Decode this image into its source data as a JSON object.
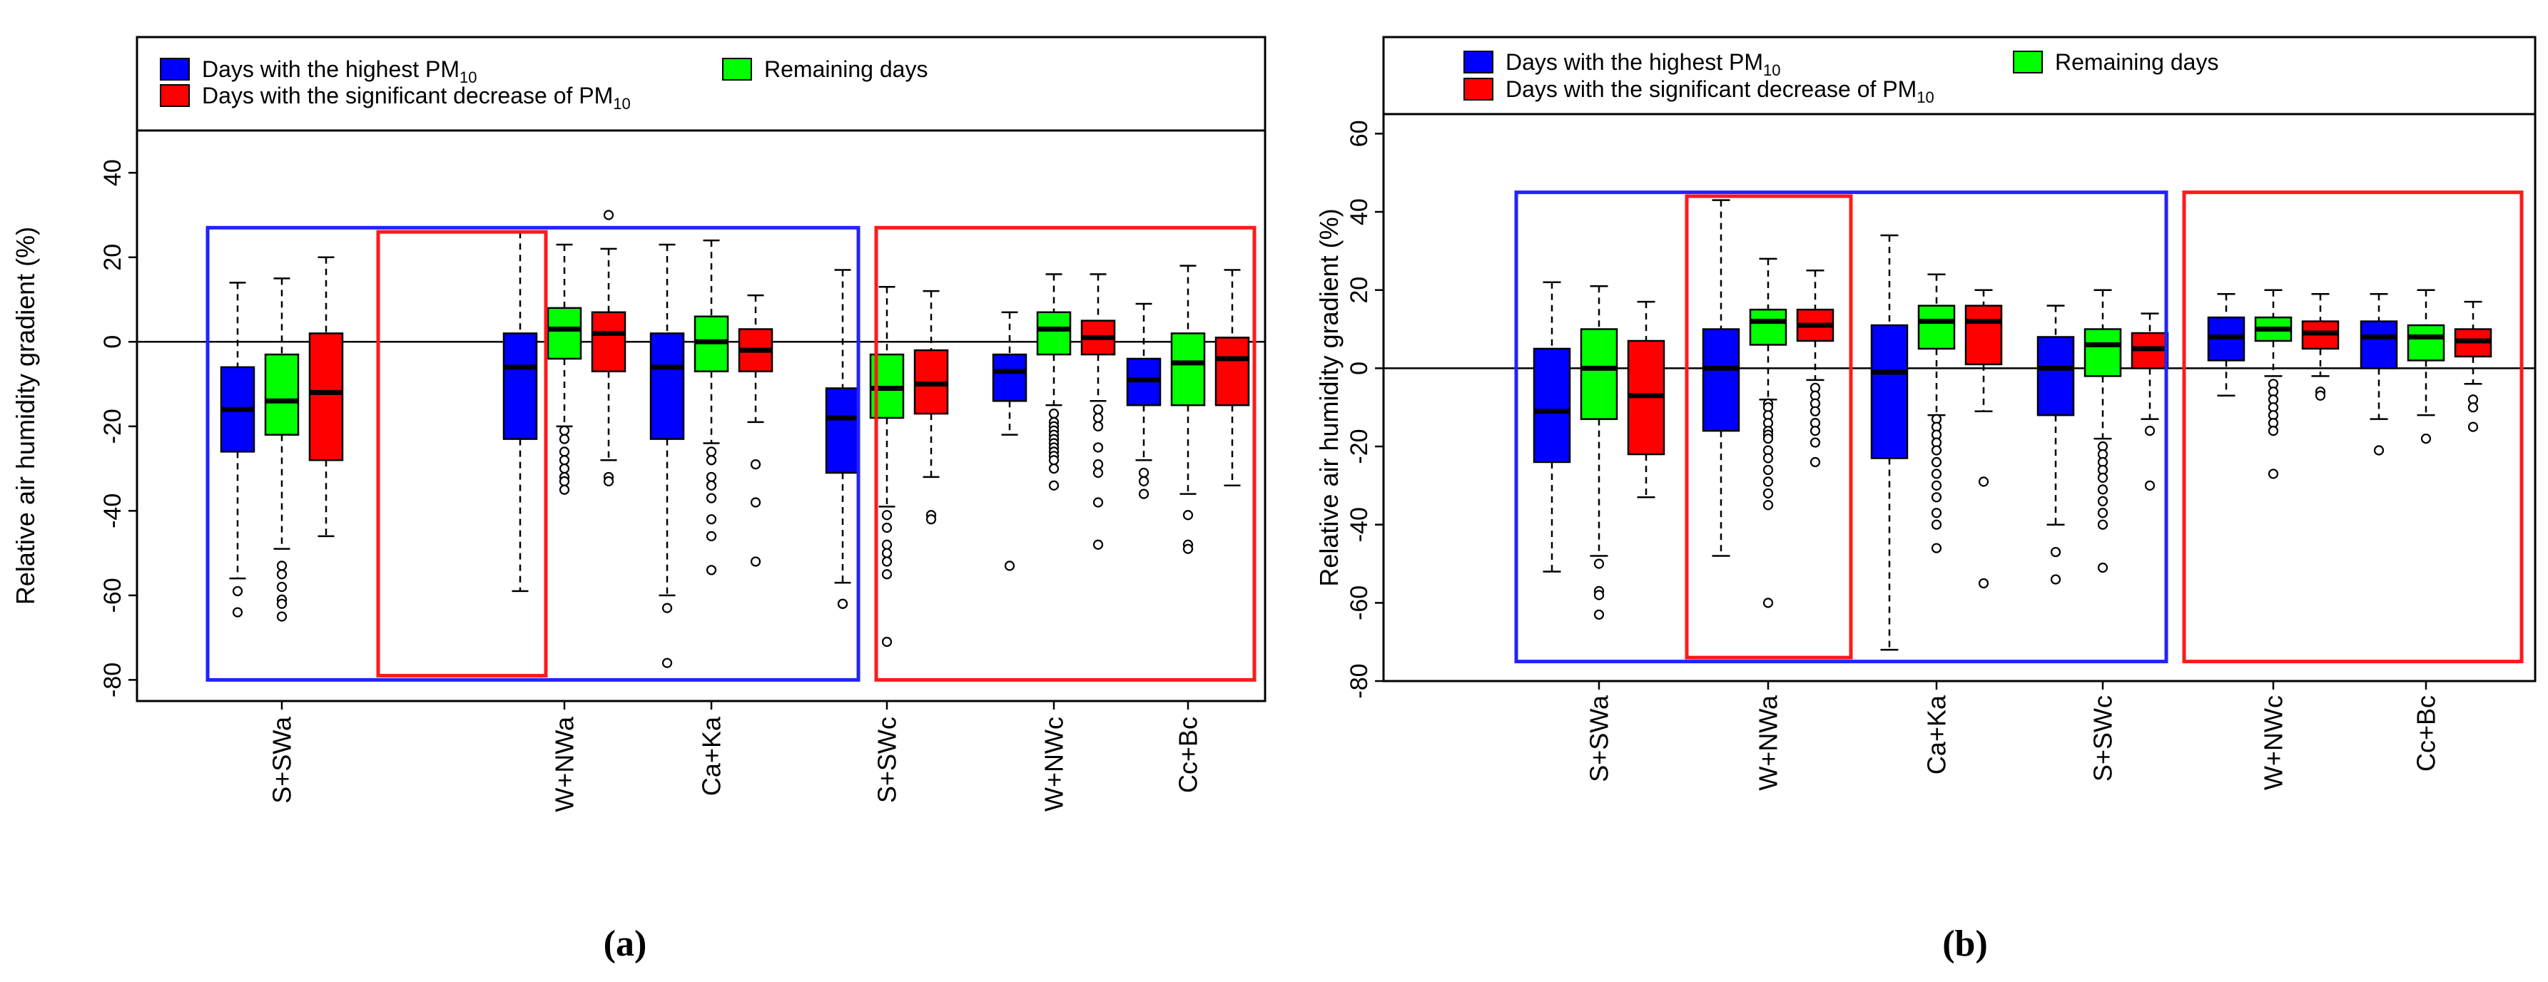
{
  "colors": {
    "blue": "#0000ff",
    "green": "#00ff00",
    "red": "#ff0000",
    "frame": "#000000",
    "outline_blue": "#2222ff",
    "outline_red": "#ff1a1a"
  },
  "chart_data": [
    {
      "type": "box",
      "panel_label": "(a)",
      "ylabel": "Relative air humidity gradient (%)",
      "ylim": [
        -85,
        50
      ],
      "yticks": [
        -80,
        -60,
        -40,
        -20,
        0,
        20,
        40
      ],
      "categories": [
        "S+SWa",
        "W+NWa",
        "Ca+Ka",
        "S+SWc",
        "W+NWc",
        "Cc+Bc"
      ],
      "legend": [
        {
          "color": "blue",
          "label": "Days with the highest PM",
          "sub": "10"
        },
        {
          "color": "red",
          "label": "Days with the significant decrease of PM",
          "sub": "10"
        },
        {
          "color": "green",
          "label": "Remaining days",
          "sub": ""
        }
      ],
      "highlights": [
        {
          "color": "outline_blue",
          "from_group": 0,
          "to_group": 3,
          "y_top": 27,
          "y_bottom": -80
        },
        {
          "color": "outline_red",
          "from_group": 1,
          "to_group": 1,
          "y_top": 26,
          "y_bottom": -79
        },
        {
          "color": "outline_red",
          "from_group": 4,
          "to_group": 5,
          "y_top": 27,
          "y_bottom": -80
        }
      ],
      "boxes": [
        {
          "group": 0,
          "color": "blue",
          "whisker_low": -56,
          "q1": -26,
          "median": -16,
          "q3": -6,
          "whisker_high": 14,
          "outliers": [
            -59,
            -64
          ]
        },
        {
          "group": 0,
          "color": "green",
          "whisker_low": -49,
          "q1": -22,
          "median": -14,
          "q3": -3,
          "whisker_high": 15,
          "outliers": [
            -53,
            -55,
            -58,
            -61,
            -62,
            -65
          ]
        },
        {
          "group": 0,
          "color": "red",
          "whisker_low": -46,
          "q1": -28,
          "median": -12,
          "q3": 2,
          "whisker_high": 20,
          "outliers": []
        },
        {
          "group": 1,
          "color": "blue",
          "whisker_low": -59,
          "q1": -23,
          "median": -6,
          "q3": 2,
          "whisker_high": 26,
          "outliers": []
        },
        {
          "group": 1,
          "color": "green",
          "whisker_low": -20,
          "q1": -4,
          "median": 3,
          "q3": 8,
          "whisker_high": 23,
          "outliers": [
            -21,
            -23,
            -26,
            -28,
            -30,
            -32,
            -33,
            -35
          ]
        },
        {
          "group": 1,
          "color": "red",
          "whisker_low": -28,
          "q1": -7,
          "median": 2,
          "q3": 7,
          "whisker_high": 22,
          "outliers": [
            -32,
            -33,
            30
          ]
        },
        {
          "group": 2,
          "color": "blue",
          "whisker_low": -60,
          "q1": -23,
          "median": -6,
          "q3": 2,
          "whisker_high": 23,
          "outliers": [
            -63,
            -76
          ]
        },
        {
          "group": 2,
          "color": "green",
          "whisker_low": -24,
          "q1": -7,
          "median": 0,
          "q3": 6,
          "whisker_high": 24,
          "outliers": [
            -26,
            -28,
            -32,
            -34,
            -37,
            -42,
            -46,
            -54
          ]
        },
        {
          "group": 2,
          "color": "red",
          "whisker_low": -19,
          "q1": -7,
          "median": -2,
          "q3": 3,
          "whisker_high": 11,
          "outliers": [
            -29,
            -38,
            -52
          ]
        },
        {
          "group": 3,
          "color": "blue",
          "whisker_low": -57,
          "q1": -31,
          "median": -18,
          "q3": -11,
          "whisker_high": 17,
          "outliers": [
            -62,
            -62
          ]
        },
        {
          "group": 3,
          "color": "green",
          "whisker_low": -39,
          "q1": -18,
          "median": -11,
          "q3": -3,
          "whisker_high": 13,
          "outliers": [
            -41,
            -44,
            -48,
            -50,
            -52,
            -55,
            -71
          ]
        },
        {
          "group": 3,
          "color": "red",
          "whisker_low": -32,
          "q1": -17,
          "median": -10,
          "q3": -2,
          "whisker_high": 12,
          "outliers": [
            -41,
            -42
          ]
        },
        {
          "group": 4,
          "color": "blue",
          "whisker_low": -22,
          "q1": -14,
          "median": -7,
          "q3": -3,
          "whisker_high": 7,
          "outliers": [
            -53
          ]
        },
        {
          "group": 4,
          "color": "green",
          "whisker_low": -15,
          "q1": -3,
          "median": 3,
          "q3": 7,
          "whisker_high": 16,
          "outliers": [
            -17,
            -19,
            -20,
            -21,
            -22,
            -23,
            -24,
            -25,
            -26,
            -27,
            -28,
            -30,
            -34
          ]
        },
        {
          "group": 4,
          "color": "red",
          "whisker_low": -14,
          "q1": -3,
          "median": 1,
          "q3": 5,
          "whisker_high": 16,
          "outliers": [
            -16,
            -18,
            -20,
            -25,
            -29,
            -31,
            -38,
            -48
          ]
        },
        {
          "group": 5,
          "color": "blue",
          "whisker_low": -28,
          "q1": -15,
          "median": -9,
          "q3": -4,
          "whisker_high": 9,
          "outliers": [
            -31,
            -33,
            -36
          ]
        },
        {
          "group": 5,
          "color": "green",
          "whisker_low": -36,
          "q1": -15,
          "median": -5,
          "q3": 2,
          "whisker_high": 18,
          "outliers": [
            -41,
            -48,
            -49
          ]
        },
        {
          "group": 5,
          "color": "red",
          "whisker_low": -34,
          "q1": -15,
          "median": -4,
          "q3": 1,
          "whisker_high": 17,
          "outliers": []
        }
      ]
    },
    {
      "type": "box",
      "panel_label": "(b)",
      "ylabel": "Relative air humidity gradient (%)",
      "ylim": [
        -80,
        65
      ],
      "yticks": [
        -80,
        -60,
        -40,
        -20,
        0,
        20,
        40,
        60
      ],
      "categories": [
        "S+SWa",
        "W+NWa",
        "Ca+Ka",
        "S+SWc",
        "W+NWc",
        "Cc+Bc"
      ],
      "legend": [
        {
          "color": "blue",
          "label": "Days with the highest PM",
          "sub": "10"
        },
        {
          "color": "red",
          "label": "Days with the significant decrease of PM",
          "sub": "10"
        },
        {
          "color": "green",
          "label": "Remaining days",
          "sub": ""
        }
      ],
      "highlights": [
        {
          "color": "outline_blue",
          "from_group": 0,
          "to_group": 3,
          "y_top": 45,
          "y_bottom": -75
        },
        {
          "color": "outline_red",
          "from_group": 1,
          "to_group": 1,
          "y_top": 44,
          "y_bottom": -74
        },
        {
          "color": "outline_red",
          "from_group": 4,
          "to_group": 5,
          "y_top": 45,
          "y_bottom": -75
        }
      ],
      "boxes": [
        {
          "group": 0,
          "color": "blue",
          "whisker_low": -52,
          "q1": -24,
          "median": -11,
          "q3": 5,
          "whisker_high": 22,
          "outliers": []
        },
        {
          "group": 0,
          "color": "green",
          "whisker_low": -48,
          "q1": -13,
          "median": 0,
          "q3": 10,
          "whisker_high": 21,
          "outliers": [
            -50,
            -57,
            -58,
            -63
          ]
        },
        {
          "group": 0,
          "color": "red",
          "whisker_low": -33,
          "q1": -22,
          "median": -7,
          "q3": 7,
          "whisker_high": 17,
          "outliers": []
        },
        {
          "group": 1,
          "color": "blue",
          "whisker_low": -48,
          "q1": -16,
          "median": 0,
          "q3": 10,
          "whisker_high": 43,
          "outliers": []
        },
        {
          "group": 1,
          "color": "green",
          "whisker_low": -8,
          "q1": 6,
          "median": 12,
          "q3": 15,
          "whisker_high": 28,
          "outliers": [
            -9,
            -10,
            -12,
            -14,
            -16,
            -17,
            -18,
            -21,
            -23,
            -26,
            -29,
            -32,
            -35,
            -60
          ]
        },
        {
          "group": 1,
          "color": "red",
          "whisker_low": -3,
          "q1": 7,
          "median": 11,
          "q3": 15,
          "whisker_high": 25,
          "outliers": [
            -5,
            -7,
            -9,
            -11,
            -14,
            -16,
            -19,
            -24
          ]
        },
        {
          "group": 2,
          "color": "blue",
          "whisker_low": -72,
          "q1": -23,
          "median": -1,
          "q3": 11,
          "whisker_high": 34,
          "outliers": []
        },
        {
          "group": 2,
          "color": "green",
          "whisker_low": -12,
          "q1": 5,
          "median": 12,
          "q3": 16,
          "whisker_high": 24,
          "outliers": [
            -13,
            -15,
            -17,
            -19,
            -21,
            -24,
            -27,
            -30,
            -33,
            -37,
            -40,
            -46
          ]
        },
        {
          "group": 2,
          "color": "red",
          "whisker_low": -11,
          "q1": 1,
          "median": 12,
          "q3": 16,
          "whisker_high": 20,
          "outliers": [
            -29,
            -55
          ]
        },
        {
          "group": 3,
          "color": "blue",
          "whisker_low": -40,
          "q1": -12,
          "median": 0,
          "q3": 8,
          "whisker_high": 16,
          "outliers": [
            -47,
            -54
          ]
        },
        {
          "group": 3,
          "color": "green",
          "whisker_low": -18,
          "q1": -2,
          "median": 6,
          "q3": 10,
          "whisker_high": 20,
          "outliers": [
            -20,
            -22,
            -24,
            -26,
            -28,
            -31,
            -34,
            -37,
            -40,
            -51
          ]
        },
        {
          "group": 3,
          "color": "red",
          "whisker_low": -13,
          "q1": 0,
          "median": 5,
          "q3": 9,
          "whisker_high": 14,
          "outliers": [
            -16,
            -30
          ]
        },
        {
          "group": 4,
          "color": "blue",
          "whisker_low": -7,
          "q1": 2,
          "median": 8,
          "q3": 13,
          "whisker_high": 19,
          "outliers": []
        },
        {
          "group": 4,
          "color": "green",
          "whisker_low": -2,
          "q1": 7,
          "median": 10,
          "q3": 13,
          "whisker_high": 20,
          "outliers": [
            -4,
            -6,
            -8,
            -10,
            -12,
            -14,
            -16,
            -27
          ]
        },
        {
          "group": 4,
          "color": "red",
          "whisker_low": -2,
          "q1": 5,
          "median": 9,
          "q3": 12,
          "whisker_high": 19,
          "outliers": [
            -6,
            -7
          ]
        },
        {
          "group": 5,
          "color": "blue",
          "whisker_low": -13,
          "q1": 0,
          "median": 8,
          "q3": 12,
          "whisker_high": 19,
          "outliers": [
            -21
          ]
        },
        {
          "group": 5,
          "color": "green",
          "whisker_low": -12,
          "q1": 2,
          "median": 8,
          "q3": 11,
          "whisker_high": 20,
          "outliers": [
            -18
          ]
        },
        {
          "group": 5,
          "color": "red",
          "whisker_low": -4,
          "q1": 3,
          "median": 7,
          "q3": 10,
          "whisker_high": 17,
          "outliers": [
            -8,
            -10,
            -15
          ]
        }
      ]
    }
  ]
}
